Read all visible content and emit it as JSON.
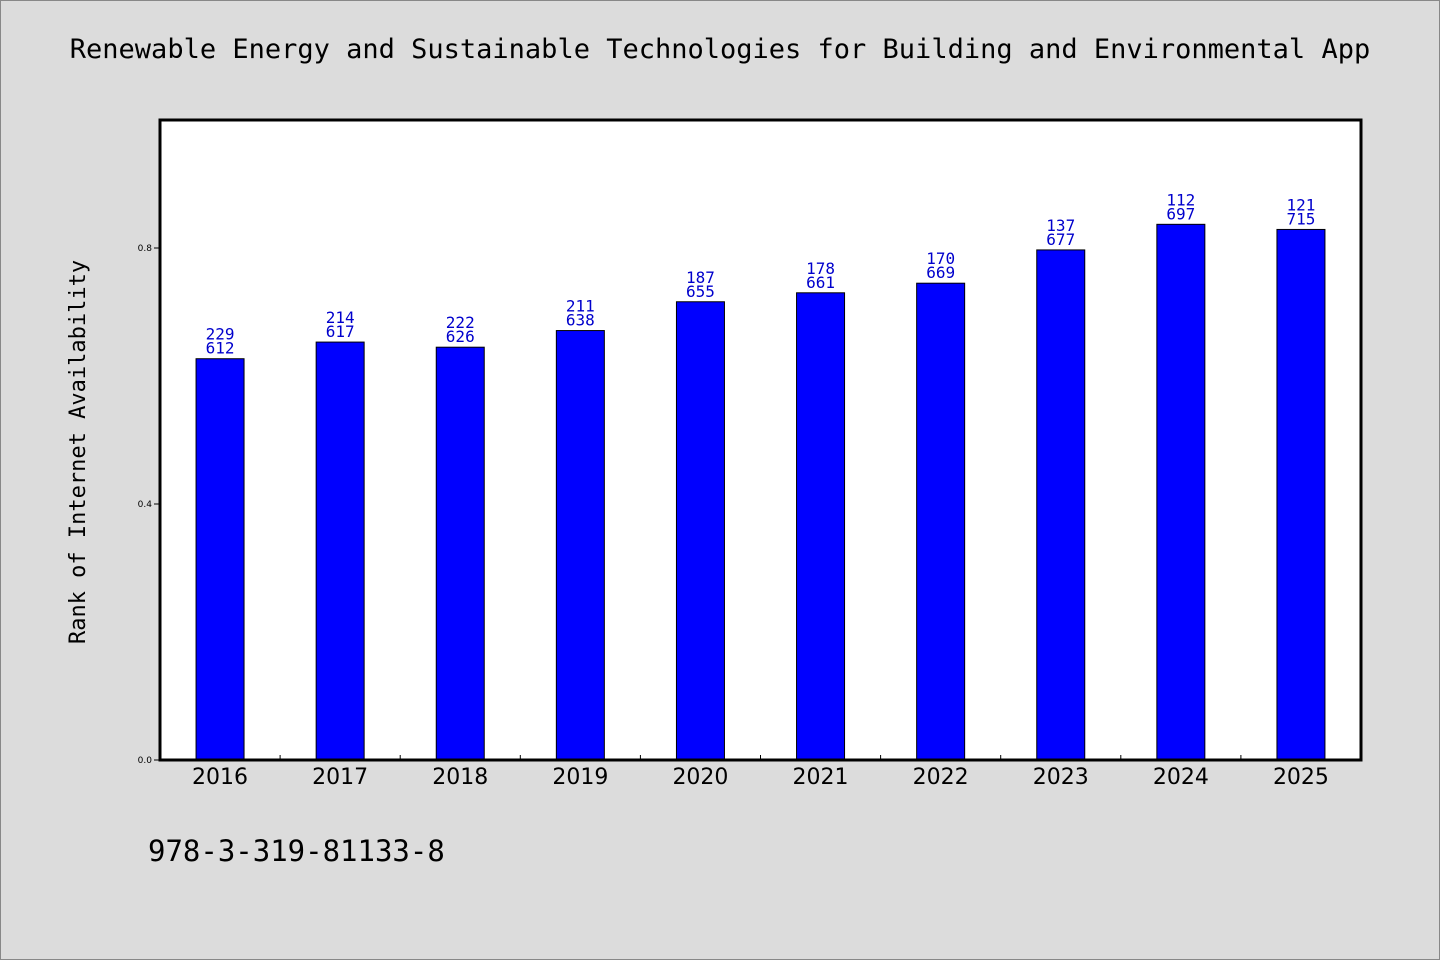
{
  "title": "Renewable Energy and Sustainable Technologies for Building and Environmental App",
  "footer_text": "978-3-319-81133-8",
  "colors": {
    "background": "#dcdcdc",
    "plot_background": "#ffffff",
    "bar": "#0000ff",
    "label": "#0000cc"
  },
  "chart_data": {
    "type": "bar",
    "title": "Renewable Energy and Sustainable Technologies for Building and Environmental App",
    "xlabel": "",
    "ylabel": "Rank of Internet Availability",
    "categories": [
      "2016",
      "2017",
      "2018",
      "2019",
      "2020",
      "2021",
      "2022",
      "2023",
      "2024",
      "2025"
    ],
    "values": [
      0.627,
      0.653,
      0.645,
      0.671,
      0.716,
      0.73,
      0.745,
      0.797,
      0.837,
      0.829
    ],
    "labels_top": [
      "229",
      "214",
      "222",
      "211",
      "187",
      "178",
      "170",
      "137",
      "112",
      "121"
    ],
    "labels_bottom": [
      "612",
      "617",
      "626",
      "638",
      "655",
      "661",
      "669",
      "677",
      "697",
      "715"
    ],
    "yticks": [
      "0.0",
      "0.4",
      "0.8"
    ],
    "ylim": [
      0,
      1.0
    ],
    "grid": false,
    "legend": "none"
  }
}
